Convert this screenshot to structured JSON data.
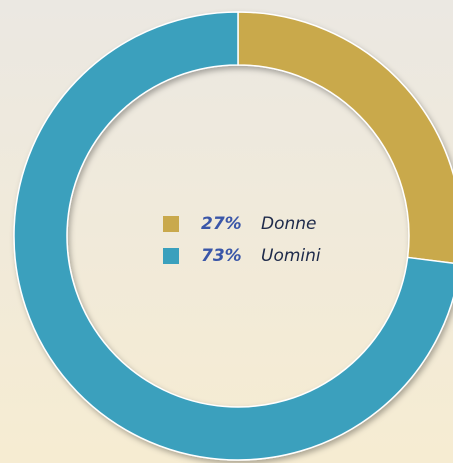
{
  "chart_data": {
    "type": "donut",
    "categories": [
      "Donne",
      "Uomini"
    ],
    "values": [
      27,
      73
    ],
    "value_labels": [
      "27%",
      "73%"
    ],
    "colors": [
      "#c9a94c",
      "#3aa0bd"
    ]
  }
}
